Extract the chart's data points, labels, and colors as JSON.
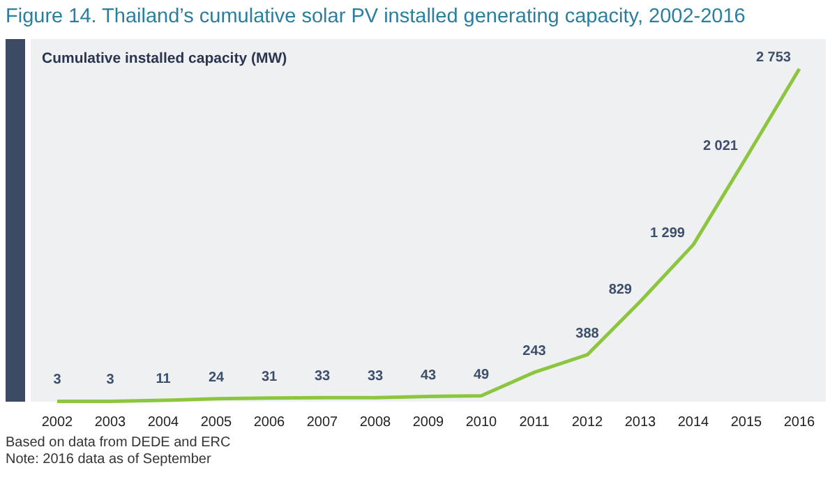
{
  "chart_data": {
    "type": "line",
    "title": "Figure 14. Thailand’s cumulative solar PV installed generating capacity, 2002-2016",
    "ylabel": "Cumulative installed capacity (MW)",
    "categories": [
      "2002",
      "2003",
      "2004",
      "2005",
      "2006",
      "2007",
      "2008",
      "2009",
      "2010",
      "2011",
      "2012",
      "2013",
      "2014",
      "2015",
      "2016"
    ],
    "series": [
      {
        "color": "#8cc63f",
        "values": [
          3,
          3,
          11,
          24,
          31,
          33,
          33,
          43,
          49,
          243,
          388,
          829,
          1299,
          2021,
          2753
        ],
        "value_labels": [
          "3",
          "3",
          "11",
          "24",
          "31",
          "33",
          "33",
          "43",
          "49",
          "243",
          "388",
          "829",
          "1 299",
          "2 021",
          "2 753"
        ]
      }
    ],
    "marker": "none",
    "grid": false,
    "annotations": [
      "Based on data from DEDE and ERC",
      "Note: 2016 data as of September"
    ]
  }
}
